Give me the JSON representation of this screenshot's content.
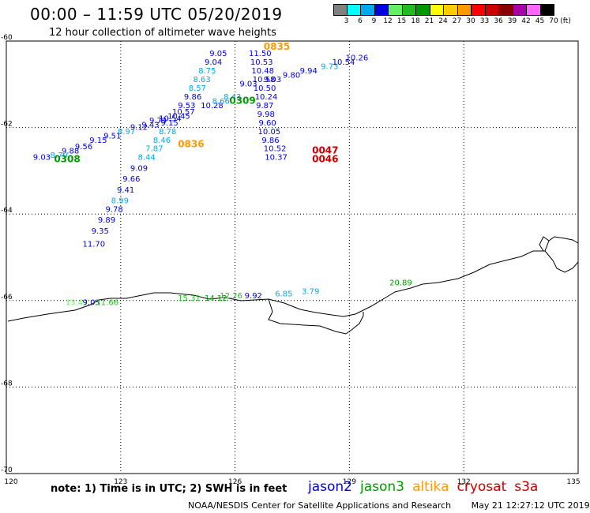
{
  "header": {
    "title": "00:00 – 11:59 UTC 05/20/2019",
    "subtitle": "12 hour collection of altimeter wave heights"
  },
  "legend": {
    "colors": [
      "#808080",
      "#00ffff",
      "#00aaee",
      "#0000e0",
      "#66ee66",
      "#22bb22",
      "#009900",
      "#ffff00",
      "#ffcc00",
      "#ff9900",
      "#ff0000",
      "#cc0000",
      "#880000",
      "#aa00aa",
      "#ff66ff",
      "#000000"
    ],
    "labels": [
      "3",
      "6",
      "9",
      "12",
      "15",
      "18",
      "21",
      "24",
      "27",
      "30",
      "33",
      "36",
      "39",
      "42",
      "45",
      "70"
    ],
    "unit": "(ft)"
  },
  "axes": {
    "x_ticks": [
      "120",
      "123",
      "126",
      "129",
      "132",
      "135"
    ],
    "y_ticks": [
      "-60",
      "-62",
      "-64",
      "-66",
      "-68",
      "-70"
    ]
  },
  "labels": {
    "note": "note: 1) Time is in UTC; 2) SWH is in feet",
    "credit": "NOAA/NESDIS Center for Satellite Applications and Research",
    "timestamp": "May 21 12:27:12 UTC 2019"
  },
  "satellites": [
    {
      "name": "jason2",
      "color": "#0000e0"
    },
    {
      "name": "jason3",
      "color": "#009900"
    },
    {
      "name": "altika",
      "color": "#ff9900"
    },
    {
      "name": "cryosat",
      "color": "#cc0000"
    },
    {
      "name": "s3a",
      "color": "#cc0000"
    }
  ],
  "chart_data": {
    "type": "scatter",
    "x_range": [
      120,
      135
    ],
    "y_range": [
      -70,
      -60
    ],
    "grid": true,
    "points": [
      {
        "lon": 126.36,
        "lat": -60.35,
        "v": "11.50",
        "c": "#0000e0"
      },
      {
        "lon": 126.4,
        "lat": -60.55,
        "v": "10.53",
        "c": "#0000e0"
      },
      {
        "lon": 126.43,
        "lat": -60.75,
        "v": "10.48",
        "c": "#0000e0"
      },
      {
        "lon": 126.46,
        "lat": -60.95,
        "v": "10.58",
        "c": "#0000e0"
      },
      {
        "lon": 126.48,
        "lat": -61.15,
        "v": "10.50",
        "c": "#0000e0"
      },
      {
        "lon": 126.52,
        "lat": -61.35,
        "v": "10.24",
        "c": "#0000e0"
      },
      {
        "lon": 126.55,
        "lat": -61.55,
        "v": "9.87",
        "c": "#0000e0"
      },
      {
        "lon": 126.58,
        "lat": -61.75,
        "v": "9.98",
        "c": "#0000e0"
      },
      {
        "lon": 126.62,
        "lat": -61.95,
        "v": "9.60",
        "c": "#0000e0"
      },
      {
        "lon": 126.6,
        "lat": -62.15,
        "v": "10.05",
        "c": "#0000e0"
      },
      {
        "lon": 126.7,
        "lat": -62.35,
        "v": "9.86",
        "c": "#0000e0"
      },
      {
        "lon": 126.75,
        "lat": -62.55,
        "v": "10.52",
        "c": "#0000e0"
      },
      {
        "lon": 126.78,
        "lat": -62.75,
        "v": "10.37",
        "c": "#0000e0"
      },
      {
        "lon": 126.12,
        "lat": -61.05,
        "v": "9.03",
        "c": "#0000e0"
      },
      {
        "lon": 126.75,
        "lat": -60.95,
        "v": "9.03",
        "c": "#0000e0"
      },
      {
        "lon": 127.25,
        "lat": -60.85,
        "v": "9.80",
        "c": "#0000e0"
      },
      {
        "lon": 127.7,
        "lat": -60.75,
        "v": "9.94",
        "c": "#0000e0"
      },
      {
        "lon": 128.25,
        "lat": -60.65,
        "v": "9.73",
        "c": "#00aaee"
      },
      {
        "lon": 128.55,
        "lat": -60.55,
        "v": "10.54",
        "c": "#0000e0"
      },
      {
        "lon": 128.9,
        "lat": -60.45,
        "v": "10.26",
        "c": "#0000e0"
      },
      {
        "lon": 125.33,
        "lat": -60.35,
        "v": "9.05",
        "c": "#0000e0"
      },
      {
        "lon": 125.2,
        "lat": -60.55,
        "v": "9.04",
        "c": "#0000e0"
      },
      {
        "lon": 125.04,
        "lat": -60.75,
        "v": "8.75",
        "c": "#00aaee"
      },
      {
        "lon": 124.9,
        "lat": -60.95,
        "v": "8.63",
        "c": "#00aaee"
      },
      {
        "lon": 124.78,
        "lat": -61.15,
        "v": "8.57",
        "c": "#00aaee"
      },
      {
        "lon": 124.66,
        "lat": -61.35,
        "v": "9.86",
        "c": "#0000e0"
      },
      {
        "lon": 124.5,
        "lat": -61.55,
        "v": "9.53",
        "c": "#0000e0"
      },
      {
        "lon": 125.1,
        "lat": -61.55,
        "v": "10.28",
        "c": "#0000e0"
      },
      {
        "lon": 124.35,
        "lat": -61.7,
        "v": "10.57",
        "c": "#0000e0"
      },
      {
        "lon": 124.23,
        "lat": -61.8,
        "v": "10.45",
        "c": "#0000e0"
      },
      {
        "lon": 124.0,
        "lat": -61.85,
        "v": "10.54",
        "c": "#0000e0"
      },
      {
        "lon": 123.75,
        "lat": -61.9,
        "v": "9.79",
        "c": "#0000e0"
      },
      {
        "lon": 123.55,
        "lat": -62.0,
        "v": "9.43",
        "c": "#0000e0"
      },
      {
        "lon": 123.25,
        "lat": -62.05,
        "v": "9.12",
        "c": "#0000e0"
      },
      {
        "lon": 122.92,
        "lat": -62.15,
        "v": "8.97",
        "c": "#00aaee"
      },
      {
        "lon": 122.55,
        "lat": -62.25,
        "v": "9.51",
        "c": "#0000e0"
      },
      {
        "lon": 122.18,
        "lat": -62.35,
        "v": "9.15",
        "c": "#0000e0"
      },
      {
        "lon": 121.8,
        "lat": -62.5,
        "v": "9.56",
        "c": "#0000e0"
      },
      {
        "lon": 121.45,
        "lat": -62.6,
        "v": "9.88",
        "c": "#0000e0"
      },
      {
        "lon": 121.15,
        "lat": -62.7,
        "v": "8.70",
        "c": "#00aaee"
      },
      {
        "lon": 120.7,
        "lat": -62.75,
        "v": "9.03",
        "c": "#0000e0"
      },
      {
        "lon": 125.7,
        "lat": -61.35,
        "v": "8.43",
        "c": "#00aaee"
      },
      {
        "lon": 125.4,
        "lat": -61.45,
        "v": "8.66",
        "c": "#00aaee"
      },
      {
        "lon": 124.05,
        "lat": -61.95,
        "v": "9.15",
        "c": "#0000e0"
      },
      {
        "lon": 124.0,
        "lat": -62.15,
        "v": "8.78",
        "c": "#00aaee"
      },
      {
        "lon": 123.85,
        "lat": -62.35,
        "v": "8.46",
        "c": "#00aaee"
      },
      {
        "lon": 123.65,
        "lat": -62.55,
        "v": "7.87",
        "c": "#00aaee"
      },
      {
        "lon": 123.45,
        "lat": -62.75,
        "v": "8.44",
        "c": "#00aaee"
      },
      {
        "lon": 123.25,
        "lat": -63.0,
        "v": "9.09",
        "c": "#0000e0"
      },
      {
        "lon": 123.05,
        "lat": -63.25,
        "v": "9.66",
        "c": "#0000e0"
      },
      {
        "lon": 122.9,
        "lat": -63.5,
        "v": "9.41",
        "c": "#0000e0"
      },
      {
        "lon": 122.75,
        "lat": -63.75,
        "v": "8.99",
        "c": "#00aaee"
      },
      {
        "lon": 122.6,
        "lat": -63.95,
        "v": "9.78",
        "c": "#0000e0"
      },
      {
        "lon": 122.4,
        "lat": -64.2,
        "v": "9.89",
        "c": "#0000e0"
      },
      {
        "lon": 122.23,
        "lat": -64.45,
        "v": "9.35",
        "c": "#0000e0"
      },
      {
        "lon": 122.0,
        "lat": -64.75,
        "v": "11.70",
        "c": "#0000e0"
      },
      {
        "lon": 121.55,
        "lat": -66.1,
        "v": "13.47",
        "c": "#66ee66"
      },
      {
        "lon": 122.0,
        "lat": -66.1,
        "v": "9.03",
        "c": "#0000e0"
      },
      {
        "lon": 122.35,
        "lat": -66.1,
        "v": "11.66",
        "c": "#22bb22"
      },
      {
        "lon": 124.5,
        "lat": -66.0,
        "v": "15.31",
        "c": "#22bb22"
      },
      {
        "lon": 125.2,
        "lat": -66.0,
        "v": "14.12",
        "c": "#009900"
      },
      {
        "lon": 125.6,
        "lat": -65.95,
        "v": "12.26",
        "c": "#22bb22"
      },
      {
        "lon": 126.25,
        "lat": -65.95,
        "v": "9.92",
        "c": "#0000e0"
      },
      {
        "lon": 127.05,
        "lat": -65.9,
        "v": "6.85",
        "c": "#00aaee"
      },
      {
        "lon": 127.75,
        "lat": -65.85,
        "v": "3.79",
        "c": "#00aaee"
      },
      {
        "lon": 130.05,
        "lat": -65.65,
        "v": "20.89",
        "c": "#009900"
      }
    ],
    "times": [
      {
        "lon": 126.75,
        "lat": -60.2,
        "v": "0835",
        "c": "#ff9900"
      },
      {
        "lon": 125.85,
        "lat": -61.45,
        "v": "0309",
        "c": "#009900"
      },
      {
        "lon": 121.25,
        "lat": -62.8,
        "v": "0308",
        "c": "#009900"
      },
      {
        "lon": 124.5,
        "lat": -62.45,
        "v": "0836",
        "c": "#ff9900"
      },
      {
        "lon": 128.02,
        "lat": -62.6,
        "v": "0047",
        "c": "#cc0000"
      },
      {
        "lon": 128.02,
        "lat": -62.8,
        "v": "0046",
        "c": "#cc0000"
      }
    ]
  }
}
